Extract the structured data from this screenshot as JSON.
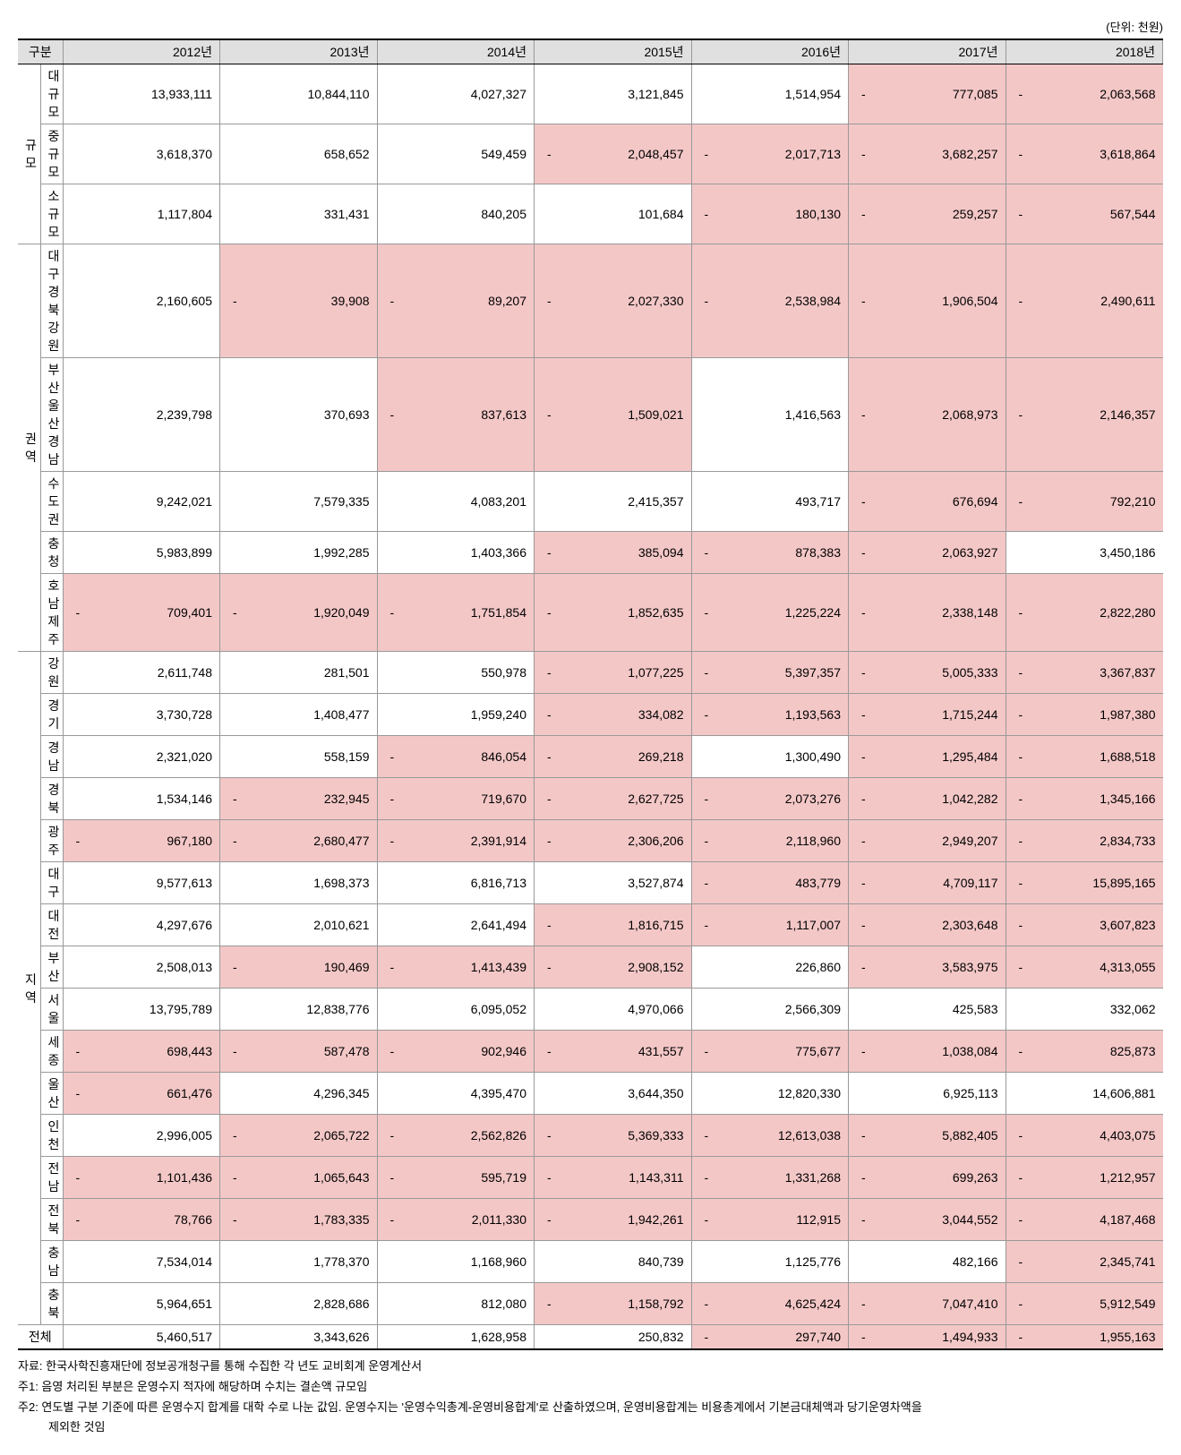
{
  "unit_label": "(단위: 천원)",
  "header": {
    "category": "구분",
    "years": [
      "2012년",
      "2013년",
      "2014년",
      "2015년",
      "2016년",
      "2017년",
      "2018년"
    ]
  },
  "groups": [
    {
      "name": "규모",
      "rows": [
        {
          "label": "대규모",
          "cells": [
            {
              "v": "13,933,111",
              "neg": false
            },
            {
              "v": "10,844,110",
              "neg": false
            },
            {
              "v": "4,027,327",
              "neg": false
            },
            {
              "v": "3,121,845",
              "neg": false
            },
            {
              "v": "1,514,954",
              "neg": false
            },
            {
              "v": "777,085",
              "neg": true
            },
            {
              "v": "2,063,568",
              "neg": true
            }
          ]
        },
        {
          "label": "중규모",
          "cells": [
            {
              "v": "3,618,370",
              "neg": false
            },
            {
              "v": "658,652",
              "neg": false
            },
            {
              "v": "549,459",
              "neg": false
            },
            {
              "v": "2,048,457",
              "neg": true
            },
            {
              "v": "2,017,713",
              "neg": true
            },
            {
              "v": "3,682,257",
              "neg": true
            },
            {
              "v": "3,618,864",
              "neg": true
            }
          ]
        },
        {
          "label": "소규모",
          "cells": [
            {
              "v": "1,117,804",
              "neg": false
            },
            {
              "v": "331,431",
              "neg": false
            },
            {
              "v": "840,205",
              "neg": false
            },
            {
              "v": "101,684",
              "neg": false
            },
            {
              "v": "180,130",
              "neg": true
            },
            {
              "v": "259,257",
              "neg": true
            },
            {
              "v": "567,544",
              "neg": true
            }
          ]
        }
      ]
    },
    {
      "name": "권역",
      "rows": [
        {
          "label": "대구경북강원",
          "cells": [
            {
              "v": "2,160,605",
              "neg": false
            },
            {
              "v": "39,908",
              "neg": true
            },
            {
              "v": "89,207",
              "neg": true
            },
            {
              "v": "2,027,330",
              "neg": true
            },
            {
              "v": "2,538,984",
              "neg": true
            },
            {
              "v": "1,906,504",
              "neg": true
            },
            {
              "v": "2,490,611",
              "neg": true
            }
          ]
        },
        {
          "label": "부산울산경남",
          "cells": [
            {
              "v": "2,239,798",
              "neg": false
            },
            {
              "v": "370,693",
              "neg": false
            },
            {
              "v": "837,613",
              "neg": true
            },
            {
              "v": "1,509,021",
              "neg": true
            },
            {
              "v": "1,416,563",
              "neg": false
            },
            {
              "v": "2,068,973",
              "neg": true
            },
            {
              "v": "2,146,357",
              "neg": true
            }
          ]
        },
        {
          "label": "수도권",
          "cells": [
            {
              "v": "9,242,021",
              "neg": false
            },
            {
              "v": "7,579,335",
              "neg": false
            },
            {
              "v": "4,083,201",
              "neg": false
            },
            {
              "v": "2,415,357",
              "neg": false
            },
            {
              "v": "493,717",
              "neg": false
            },
            {
              "v": "676,694",
              "neg": true
            },
            {
              "v": "792,210",
              "neg": true
            }
          ]
        },
        {
          "label": "충청",
          "cells": [
            {
              "v": "5,983,899",
              "neg": false
            },
            {
              "v": "1,992,285",
              "neg": false
            },
            {
              "v": "1,403,366",
              "neg": false
            },
            {
              "v": "385,094",
              "neg": true
            },
            {
              "v": "878,383",
              "neg": true
            },
            {
              "v": "2,063,927",
              "neg": true
            },
            {
              "v": "3,450,186",
              "neg": false
            }
          ]
        },
        {
          "label": "호남제주",
          "cells": [
            {
              "v": "709,401",
              "neg": true
            },
            {
              "v": "1,920,049",
              "neg": true
            },
            {
              "v": "1,751,854",
              "neg": true
            },
            {
              "v": "1,852,635",
              "neg": true
            },
            {
              "v": "1,225,224",
              "neg": true
            },
            {
              "v": "2,338,148",
              "neg": true
            },
            {
              "v": "2,822,280",
              "neg": true
            }
          ]
        }
      ]
    },
    {
      "name": "지역",
      "rows": [
        {
          "label": "강원",
          "cells": [
            {
              "v": "2,611,748",
              "neg": false
            },
            {
              "v": "281,501",
              "neg": false
            },
            {
              "v": "550,978",
              "neg": false
            },
            {
              "v": "1,077,225",
              "neg": true
            },
            {
              "v": "5,397,357",
              "neg": true
            },
            {
              "v": "5,005,333",
              "neg": true
            },
            {
              "v": "3,367,837",
              "neg": true
            }
          ]
        },
        {
          "label": "경기",
          "cells": [
            {
              "v": "3,730,728",
              "neg": false
            },
            {
              "v": "1,408,477",
              "neg": false
            },
            {
              "v": "1,959,240",
              "neg": false
            },
            {
              "v": "334,082",
              "neg": true
            },
            {
              "v": "1,193,563",
              "neg": true
            },
            {
              "v": "1,715,244",
              "neg": true
            },
            {
              "v": "1,987,380",
              "neg": true
            }
          ]
        },
        {
          "label": "경남",
          "cells": [
            {
              "v": "2,321,020",
              "neg": false
            },
            {
              "v": "558,159",
              "neg": false
            },
            {
              "v": "846,054",
              "neg": true
            },
            {
              "v": "269,218",
              "neg": true
            },
            {
              "v": "1,300,490",
              "neg": false
            },
            {
              "v": "1,295,484",
              "neg": true
            },
            {
              "v": "1,688,518",
              "neg": true
            }
          ]
        },
        {
          "label": "경북",
          "cells": [
            {
              "v": "1,534,146",
              "neg": false
            },
            {
              "v": "232,945",
              "neg": true
            },
            {
              "v": "719,670",
              "neg": true
            },
            {
              "v": "2,627,725",
              "neg": true
            },
            {
              "v": "2,073,276",
              "neg": true
            },
            {
              "v": "1,042,282",
              "neg": true
            },
            {
              "v": "1,345,166",
              "neg": true
            }
          ]
        },
        {
          "label": "광주",
          "cells": [
            {
              "v": "967,180",
              "neg": true
            },
            {
              "v": "2,680,477",
              "neg": true
            },
            {
              "v": "2,391,914",
              "neg": true
            },
            {
              "v": "2,306,206",
              "neg": true
            },
            {
              "v": "2,118,960",
              "neg": true
            },
            {
              "v": "2,949,207",
              "neg": true
            },
            {
              "v": "2,834,733",
              "neg": true
            }
          ]
        },
        {
          "label": "대구",
          "cells": [
            {
              "v": "9,577,613",
              "neg": false
            },
            {
              "v": "1,698,373",
              "neg": false
            },
            {
              "v": "6,816,713",
              "neg": false
            },
            {
              "v": "3,527,874",
              "neg": false
            },
            {
              "v": "483,779",
              "neg": true
            },
            {
              "v": "4,709,117",
              "neg": true
            },
            {
              "v": "15,895,165",
              "neg": true
            }
          ]
        },
        {
          "label": "대전",
          "cells": [
            {
              "v": "4,297,676",
              "neg": false
            },
            {
              "v": "2,010,621",
              "neg": false
            },
            {
              "v": "2,641,494",
              "neg": false
            },
            {
              "v": "1,816,715",
              "neg": true
            },
            {
              "v": "1,117,007",
              "neg": true
            },
            {
              "v": "2,303,648",
              "neg": true
            },
            {
              "v": "3,607,823",
              "neg": true
            }
          ]
        },
        {
          "label": "부산",
          "cells": [
            {
              "v": "2,508,013",
              "neg": false
            },
            {
              "v": "190,469",
              "neg": true
            },
            {
              "v": "1,413,439",
              "neg": true
            },
            {
              "v": "2,908,152",
              "neg": true
            },
            {
              "v": "226,860",
              "neg": false
            },
            {
              "v": "3,583,975",
              "neg": true
            },
            {
              "v": "4,313,055",
              "neg": true
            }
          ]
        },
        {
          "label": "서울",
          "cells": [
            {
              "v": "13,795,789",
              "neg": false
            },
            {
              "v": "12,838,776",
              "neg": false
            },
            {
              "v": "6,095,052",
              "neg": false
            },
            {
              "v": "4,970,066",
              "neg": false
            },
            {
              "v": "2,566,309",
              "neg": false
            },
            {
              "v": "425,583",
              "neg": false
            },
            {
              "v": "332,062",
              "neg": false
            }
          ]
        },
        {
          "label": "세종",
          "cells": [
            {
              "v": "698,443",
              "neg": true
            },
            {
              "v": "587,478",
              "neg": true
            },
            {
              "v": "902,946",
              "neg": true
            },
            {
              "v": "431,557",
              "neg": true
            },
            {
              "v": "775,677",
              "neg": true
            },
            {
              "v": "1,038,084",
              "neg": true
            },
            {
              "v": "825,873",
              "neg": true
            }
          ]
        },
        {
          "label": "울산",
          "cells": [
            {
              "v": "661,476",
              "neg": true
            },
            {
              "v": "4,296,345",
              "neg": false
            },
            {
              "v": "4,395,470",
              "neg": false
            },
            {
              "v": "3,644,350",
              "neg": false
            },
            {
              "v": "12,820,330",
              "neg": false
            },
            {
              "v": "6,925,113",
              "neg": false
            },
            {
              "v": "14,606,881",
              "neg": false
            }
          ]
        },
        {
          "label": "인천",
          "cells": [
            {
              "v": "2,996,005",
              "neg": false
            },
            {
              "v": "2,065,722",
              "neg": true
            },
            {
              "v": "2,562,826",
              "neg": true
            },
            {
              "v": "5,369,333",
              "neg": true
            },
            {
              "v": "12,613,038",
              "neg": true
            },
            {
              "v": "5,882,405",
              "neg": true
            },
            {
              "v": "4,403,075",
              "neg": true
            }
          ]
        },
        {
          "label": "전남",
          "cells": [
            {
              "v": "1,101,436",
              "neg": true
            },
            {
              "v": "1,065,643",
              "neg": true
            },
            {
              "v": "595,719",
              "neg": true
            },
            {
              "v": "1,143,311",
              "neg": true
            },
            {
              "v": "1,331,268",
              "neg": true
            },
            {
              "v": "699,263",
              "neg": true
            },
            {
              "v": "1,212,957",
              "neg": true
            }
          ]
        },
        {
          "label": "전북",
          "cells": [
            {
              "v": "78,766",
              "neg": true
            },
            {
              "v": "1,783,335",
              "neg": true
            },
            {
              "v": "2,011,330",
              "neg": true
            },
            {
              "v": "1,942,261",
              "neg": true
            },
            {
              "v": "112,915",
              "neg": true
            },
            {
              "v": "3,044,552",
              "neg": true
            },
            {
              "v": "4,187,468",
              "neg": true
            }
          ]
        },
        {
          "label": "충남",
          "cells": [
            {
              "v": "7,534,014",
              "neg": false
            },
            {
              "v": "1,778,370",
              "neg": false
            },
            {
              "v": "1,168,960",
              "neg": false
            },
            {
              "v": "840,739",
              "neg": false
            },
            {
              "v": "1,125,776",
              "neg": false
            },
            {
              "v": "482,166",
              "neg": false
            },
            {
              "v": "2,345,741",
              "neg": true
            }
          ]
        },
        {
          "label": "충북",
          "cells": [
            {
              "v": "5,964,651",
              "neg": false
            },
            {
              "v": "2,828,686",
              "neg": false
            },
            {
              "v": "812,080",
              "neg": false
            },
            {
              "v": "1,158,792",
              "neg": true
            },
            {
              "v": "4,625,424",
              "neg": true
            },
            {
              "v": "7,047,410",
              "neg": true
            },
            {
              "v": "5,912,549",
              "neg": true
            }
          ]
        }
      ]
    }
  ],
  "total": {
    "label": "전체",
    "cells": [
      {
        "v": "5,460,517",
        "neg": false
      },
      {
        "v": "3,343,626",
        "neg": false
      },
      {
        "v": "1,628,958",
        "neg": false
      },
      {
        "v": "250,832",
        "neg": false
      },
      {
        "v": "297,740",
        "neg": true
      },
      {
        "v": "1,494,933",
        "neg": true
      },
      {
        "v": "1,955,163",
        "neg": true
      }
    ]
  },
  "notes": {
    "source": "자료: 한국사학진흥재단에 정보공개청구를 통해 수집한 각 년도 교비회계 운영계산서",
    "note1": "주1: 음영 처리된 부분은 운영수지 적자에 해당하며 수치는 결손액 규모임",
    "note2a": "주2: 연도별 구분 기준에 따른 운영수지 합계를 대학 수로 나눈 값임. 운영수지는 '운영수익총계-운영비용합계'로 산출하였으며, 운영비용합계는 비용총계에서 기본금대체액과 당기운영차액을",
    "note2b": "제외한 것임"
  },
  "style": {
    "neg_bg": "#f4c7c7",
    "header_bg": "#e0e0e0",
    "border": "#999999",
    "strong_border": "#000000",
    "font_size": 14
  }
}
